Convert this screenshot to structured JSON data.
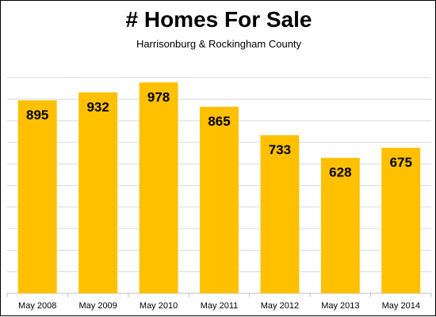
{
  "chart_data": {
    "type": "bar",
    "title": "# Homes For Sale",
    "subtitle": "Harrisonburg  &  Rockingham  County",
    "categories": [
      "May 2008",
      "May 2009",
      "May 2010",
      "May 2011",
      "May 2012",
      "May 2013",
      "May 2014"
    ],
    "values": [
      895,
      932,
      978,
      865,
      733,
      628,
      675
    ],
    "xlabel": "",
    "ylabel": "",
    "ylim": [
      0,
      1100
    ],
    "grid": true,
    "bar_color": "#ffc000"
  }
}
